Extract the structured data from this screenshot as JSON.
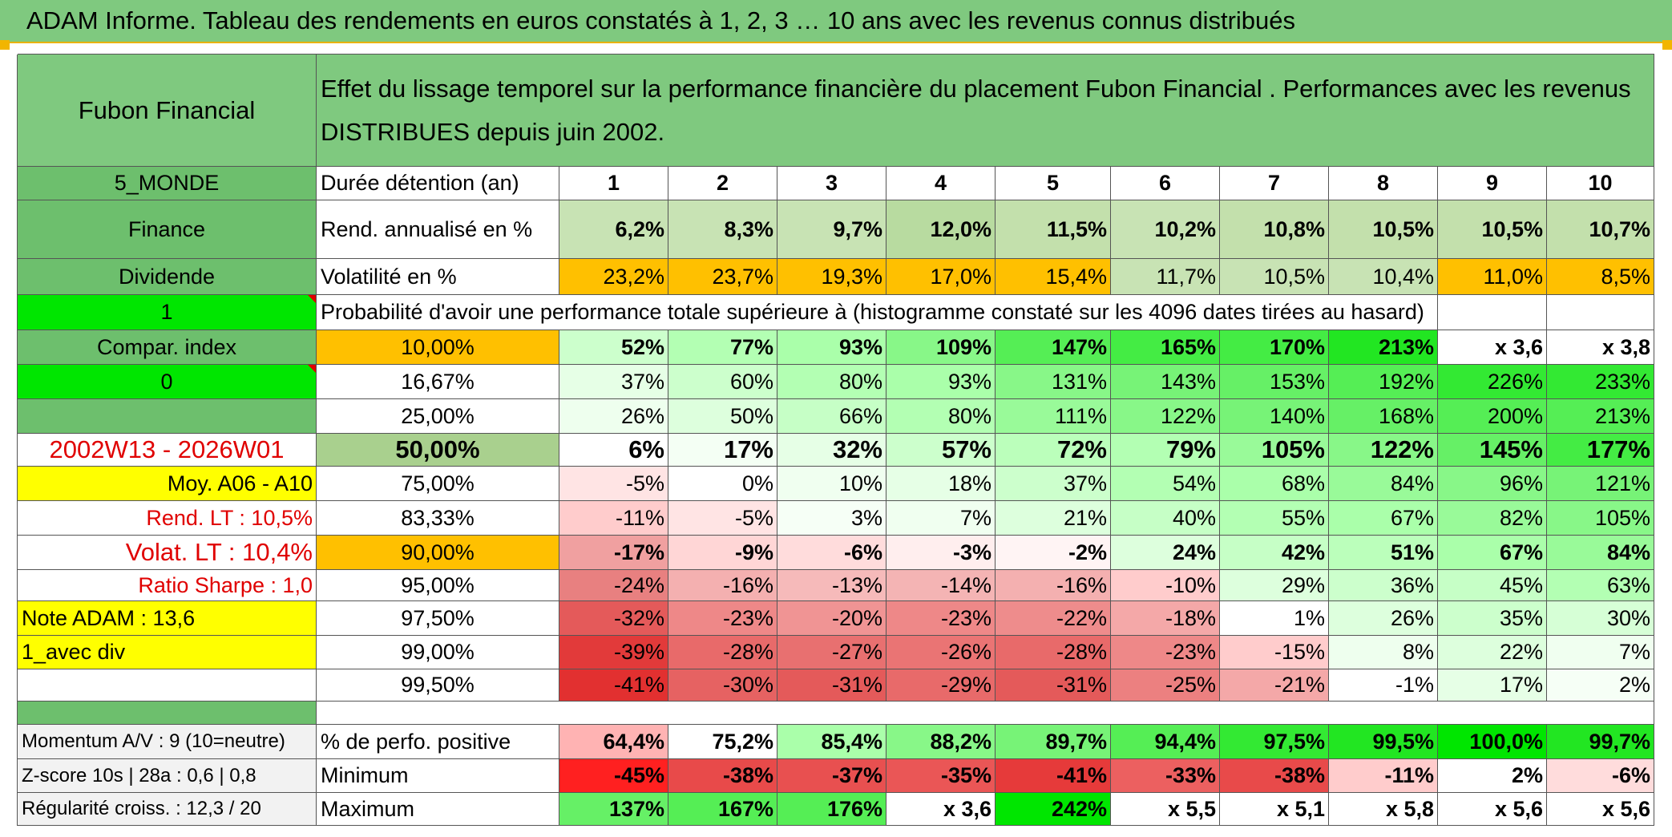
{
  "title": "ADAM Informe. Tableau des rendements en euros constatés à 1, 2, 3 … 10 ans avec les revenus connus distribués",
  "header": {
    "name": "Fubon Financial",
    "description": "Effet du lissage temporel sur la performance financière du placement Fubon Financial . Performances avec les revenus DISTRIBUES depuis juin 2002."
  },
  "left_labels": {
    "region": "5_MONDE",
    "sector": "Finance",
    "type": "Dividende",
    "flag1": "1",
    "compar": "Compar. index",
    "flag0": "0",
    "blank": "",
    "period": "2002W13 - 2026W01",
    "moy": "Moy. A06 - A10",
    "rend_lt": "Rend. LT :   10,5%",
    "volat_lt": "Volat. LT :   10,4%",
    "sharpe": "Ratio Sharpe :    1,0",
    "note": "Note ADAM : 13,6",
    "avec_div": "1_avec div",
    "blank2": ""
  },
  "stats_labels": {
    "duree": "Durée détention (an)",
    "rend": "Rend. annualisé en %",
    "vol": "Volatilité en %",
    "prob": "Probabilité d'avoir une performance totale supérieure à (histogramme constaté sur les 4096 dates tirées au hasard)"
  },
  "years": [
    "1",
    "2",
    "3",
    "4",
    "5",
    "6",
    "7",
    "8",
    "9",
    "10"
  ],
  "rend": [
    "6,2%",
    "8,3%",
    "9,7%",
    "12,0%",
    "11,5%",
    "10,2%",
    "10,8%",
    "10,5%",
    "10,5%",
    "10,7%"
  ],
  "vol": [
    "23,2%",
    "23,7%",
    "19,3%",
    "17,0%",
    "15,4%",
    "11,7%",
    "10,5%",
    "10,4%",
    "11,0%",
    "8,5%"
  ],
  "perc_rows": [
    {
      "p": "10,00%",
      "v": [
        "52%",
        "77%",
        "93%",
        "109%",
        "147%",
        "165%",
        "170%",
        "213%",
        "x 3,6",
        "x 3,8"
      ]
    },
    {
      "p": "16,67%",
      "v": [
        "37%",
        "60%",
        "80%",
        "93%",
        "131%",
        "143%",
        "153%",
        "192%",
        "226%",
        "233%"
      ]
    },
    {
      "p": "25,00%",
      "v": [
        "26%",
        "50%",
        "66%",
        "80%",
        "111%",
        "122%",
        "140%",
        "168%",
        "200%",
        "213%"
      ]
    },
    {
      "p": "50,00%",
      "v": [
        "6%",
        "17%",
        "32%",
        "57%",
        "72%",
        "79%",
        "105%",
        "122%",
        "145%",
        "177%"
      ]
    },
    {
      "p": "75,00%",
      "v": [
        "-5%",
        "0%",
        "10%",
        "18%",
        "37%",
        "54%",
        "68%",
        "84%",
        "96%",
        "121%"
      ]
    },
    {
      "p": "83,33%",
      "v": [
        "-11%",
        "-5%",
        "3%",
        "7%",
        "21%",
        "40%",
        "55%",
        "67%",
        "82%",
        "105%"
      ]
    },
    {
      "p": "90,00%",
      "v": [
        "-17%",
        "-9%",
        "-6%",
        "-3%",
        "-2%",
        "24%",
        "42%",
        "51%",
        "67%",
        "84%"
      ]
    },
    {
      "p": "95,00%",
      "v": [
        "-24%",
        "-16%",
        "-13%",
        "-14%",
        "-16%",
        "-10%",
        "29%",
        "36%",
        "45%",
        "63%"
      ]
    },
    {
      "p": "97,50%",
      "v": [
        "-32%",
        "-23%",
        "-20%",
        "-23%",
        "-22%",
        "-18%",
        "1%",
        "26%",
        "35%",
        "30%"
      ]
    },
    {
      "p": "99,00%",
      "v": [
        "-39%",
        "-28%",
        "-27%",
        "-26%",
        "-28%",
        "-23%",
        "-15%",
        "8%",
        "22%",
        "7%"
      ]
    },
    {
      "p": "99,50%",
      "v": [
        "-41%",
        "-30%",
        "-31%",
        "-29%",
        "-31%",
        "-25%",
        "-21%",
        "-1%",
        "17%",
        "2%"
      ]
    }
  ],
  "bottom_rows": [
    {
      "left": "Momentum A/V : 9 (10=neutre)",
      "label": "% de perfo. positive",
      "v": [
        "64,4%",
        "75,2%",
        "85,4%",
        "88,2%",
        "89,7%",
        "94,4%",
        "97,5%",
        "99,5%",
        "100,0%",
        "99,7%"
      ]
    },
    {
      "left": "Z-score 10s | 28a : 0,6 | 0,8",
      "label": "Minimum",
      "v": [
        "-45%",
        "-38%",
        "-37%",
        "-35%",
        "-41%",
        "-33%",
        "-38%",
        "-11%",
        "2%",
        "-6%"
      ]
    },
    {
      "left": "Régularité croiss. : 12,3 / 20",
      "label": "Maximum",
      "v": [
        "137%",
        "167%",
        "176%",
        "x 3,6",
        "242%",
        "x 5,5",
        "x 5,1",
        "x 5,8",
        "x 5,6",
        "x 5,6"
      ]
    }
  ],
  "colors": {
    "header_green": "#7fc97f",
    "orange": "#ffc000",
    "yellow": "#ffff00",
    "bright_green": "#00e600",
    "red_text": "#e00000"
  }
}
